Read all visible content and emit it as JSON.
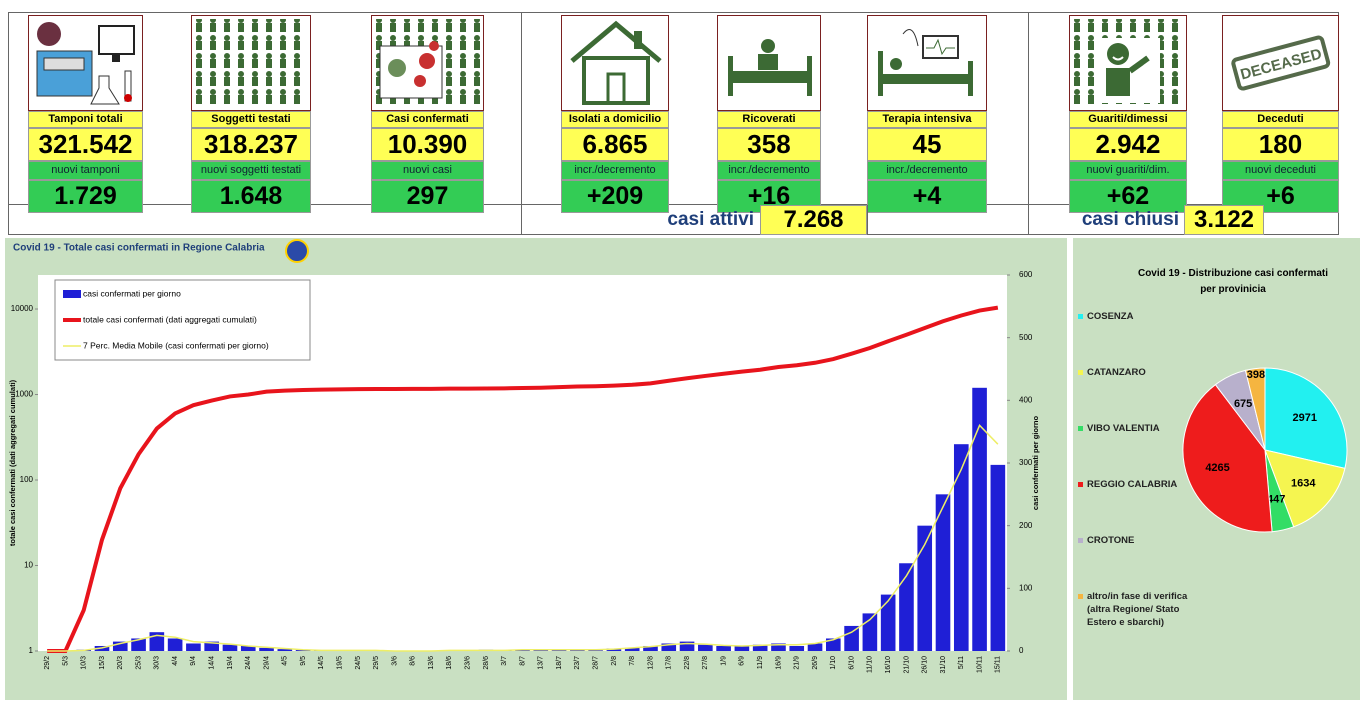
{
  "dashboard": {
    "cards": [
      {
        "label": "Tamponi totali",
        "value": "321.542",
        "sublabel": "nuovi tamponi",
        "subvalue": "1.729"
      },
      {
        "label": "Soggetti testati",
        "value": "318.237",
        "sublabel": "nuovi soggetti testati",
        "subvalue": "1.648"
      },
      {
        "label": "Casi confermati",
        "value": "10.390",
        "sublabel": "nuovi casi",
        "subvalue": "297"
      },
      {
        "label": "Isolati a domicilio",
        "value": "6.865",
        "sublabel": "incr./decremento",
        "subvalue": "+209"
      },
      {
        "label": "Ricoverati",
        "value": "358",
        "sublabel": "incr./decremento",
        "subvalue": "+16"
      },
      {
        "label": "Terapia intensiva",
        "value": "45",
        "sublabel": "incr./decremento",
        "subvalue": "+4"
      },
      {
        "label": "Guariti/dimessi",
        "value": "2.942",
        "sublabel": "nuovi guariti/dim.",
        "subvalue": "+62"
      },
      {
        "label": "Deceduti",
        "value": "180",
        "sublabel": "nuovi deceduti",
        "subvalue": "+6"
      }
    ],
    "summary": [
      {
        "label": "casi attivi",
        "value": "7.268"
      },
      {
        "label": "casi chiusi",
        "value": "3.122"
      }
    ]
  },
  "chart_data": [
    {
      "type": "bar",
      "title": "Covid 19 - Totale casi confermati in Regione Calabria",
      "ylabel": "totale casi confermati (dati aggregati cumulati)",
      "y2label": "casi confermati per giorno",
      "ylog": true,
      "ylim": [
        1,
        25000
      ],
      "yticks": [
        1,
        10,
        100,
        1000,
        10000
      ],
      "y2lim": [
        0,
        600
      ],
      "y2ticks": [
        0,
        100,
        200,
        300,
        400,
        500,
        600
      ],
      "categories": [
        "29/2",
        "5/3",
        "10/3",
        "15/3",
        "20/3",
        "25/3",
        "30/3",
        "4/4",
        "9/4",
        "14/4",
        "19/4",
        "24/4",
        "29/4",
        "4/5",
        "9/5",
        "14/5",
        "19/5",
        "24/5",
        "29/5",
        "3/6",
        "8/6",
        "13/6",
        "18/6",
        "23/6",
        "28/6",
        "3/7",
        "8/7",
        "13/7",
        "18/7",
        "23/7",
        "28/7",
        "2/8",
        "7/8",
        "12/8",
        "17/8",
        "22/8",
        "27/8",
        "1/9",
        "6/9",
        "11/9",
        "16/9",
        "21/9",
        "26/9",
        "1/10",
        "6/10",
        "11/10",
        "16/10",
        "21/10",
        "26/10",
        "31/10",
        "5/11",
        "10/11",
        "15/11"
      ],
      "series": [
        {
          "name": "casi confermati per giorno",
          "type": "bar",
          "axis": "y2",
          "color": "#1f1fd6",
          "values": [
            0,
            0,
            2,
            8,
            15,
            20,
            30,
            20,
            12,
            15,
            10,
            8,
            5,
            3,
            2,
            1,
            1,
            0,
            1,
            0,
            0,
            0,
            1,
            0,
            2,
            1,
            2,
            1,
            2,
            3,
            1,
            4,
            5,
            8,
            12,
            15,
            10,
            8,
            8,
            10,
            12,
            8,
            12,
            20,
            40,
            60,
            90,
            140,
            200,
            250,
            330,
            420,
            297
          ]
        },
        {
          "name": "totale casi confermati (dati aggregati cumulati)",
          "type": "line",
          "axis": "y",
          "color": "#e8141c",
          "values": [
            1,
            1,
            3,
            20,
            80,
            200,
            400,
            600,
            750,
            850,
            950,
            1000,
            1080,
            1110,
            1130,
            1140,
            1150,
            1155,
            1160,
            1160,
            1165,
            1165,
            1170,
            1170,
            1175,
            1180,
            1190,
            1200,
            1220,
            1240,
            1250,
            1270,
            1300,
            1350,
            1450,
            1550,
            1650,
            1750,
            1850,
            1950,
            2100,
            2200,
            2350,
            2600,
            3000,
            3500,
            4200,
            5000,
            6000,
            7200,
            8400,
            9600,
            10390
          ]
        },
        {
          "name": "7 Perc. Media Mobile (casi confermati per giorno)",
          "type": "line",
          "axis": "y2",
          "color": "#eeee66",
          "values": [
            0,
            0,
            1,
            5,
            12,
            18,
            25,
            22,
            15,
            13,
            11,
            8,
            6,
            4,
            2,
            1,
            1,
            1,
            1,
            0,
            0,
            0,
            1,
            1,
            1,
            1,
            2,
            2,
            2,
            2,
            2,
            3,
            5,
            7,
            10,
            12,
            11,
            9,
            8,
            9,
            10,
            10,
            12,
            18,
            30,
            50,
            80,
            120,
            170,
            230,
            290,
            360,
            330
          ]
        }
      ]
    },
    {
      "type": "pie",
      "title": "Covid 19 - Distribuzione casi confermati per provinicia",
      "categories": [
        "COSENZA",
        "CATANZARO",
        "VIBO VALENTIA",
        "REGGIO CALABRIA",
        "CROTONE",
        "altro/in fase di verifica (altra Regione/ Stato Estero e sbarchi)"
      ],
      "values": [
        2971,
        1634,
        447,
        4265,
        675,
        398
      ],
      "colors": [
        "#22f0f0",
        "#f5f550",
        "#33dd66",
        "#ee1c1c",
        "#b8b0cc",
        "#f5b540"
      ]
    }
  ]
}
